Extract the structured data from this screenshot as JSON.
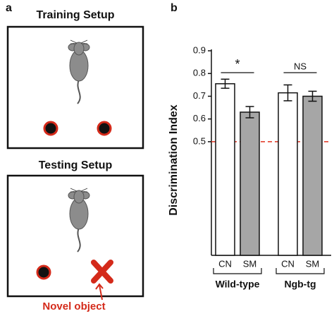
{
  "panel_a": {
    "label": "a",
    "training_title": "Training Setup",
    "testing_title": "Testing Setup",
    "annotation": "Novel object"
  },
  "chart_data": {
    "type": "bar",
    "panel_label": "b",
    "y_label": "Discrimination Index",
    "categories": [
      "CN",
      "SM",
      "CN",
      "SM"
    ],
    "values": [
      0.755,
      0.63,
      0.715,
      0.7
    ],
    "errors": [
      0.02,
      0.025,
      0.035,
      0.022
    ],
    "colors": [
      "#ffffff",
      "#a6a6a6",
      "#ffffff",
      "#a6a6a6"
    ],
    "groups": [
      "Wild-type",
      "Ngb-tg"
    ],
    "significance": [
      "*",
      "NS"
    ],
    "reference_line": {
      "value": 0.5,
      "color": "#e0301e"
    },
    "ylim": [
      0,
      0.9
    ],
    "yticks": [
      0.5,
      0.6,
      0.7,
      0.8,
      0.9
    ]
  }
}
